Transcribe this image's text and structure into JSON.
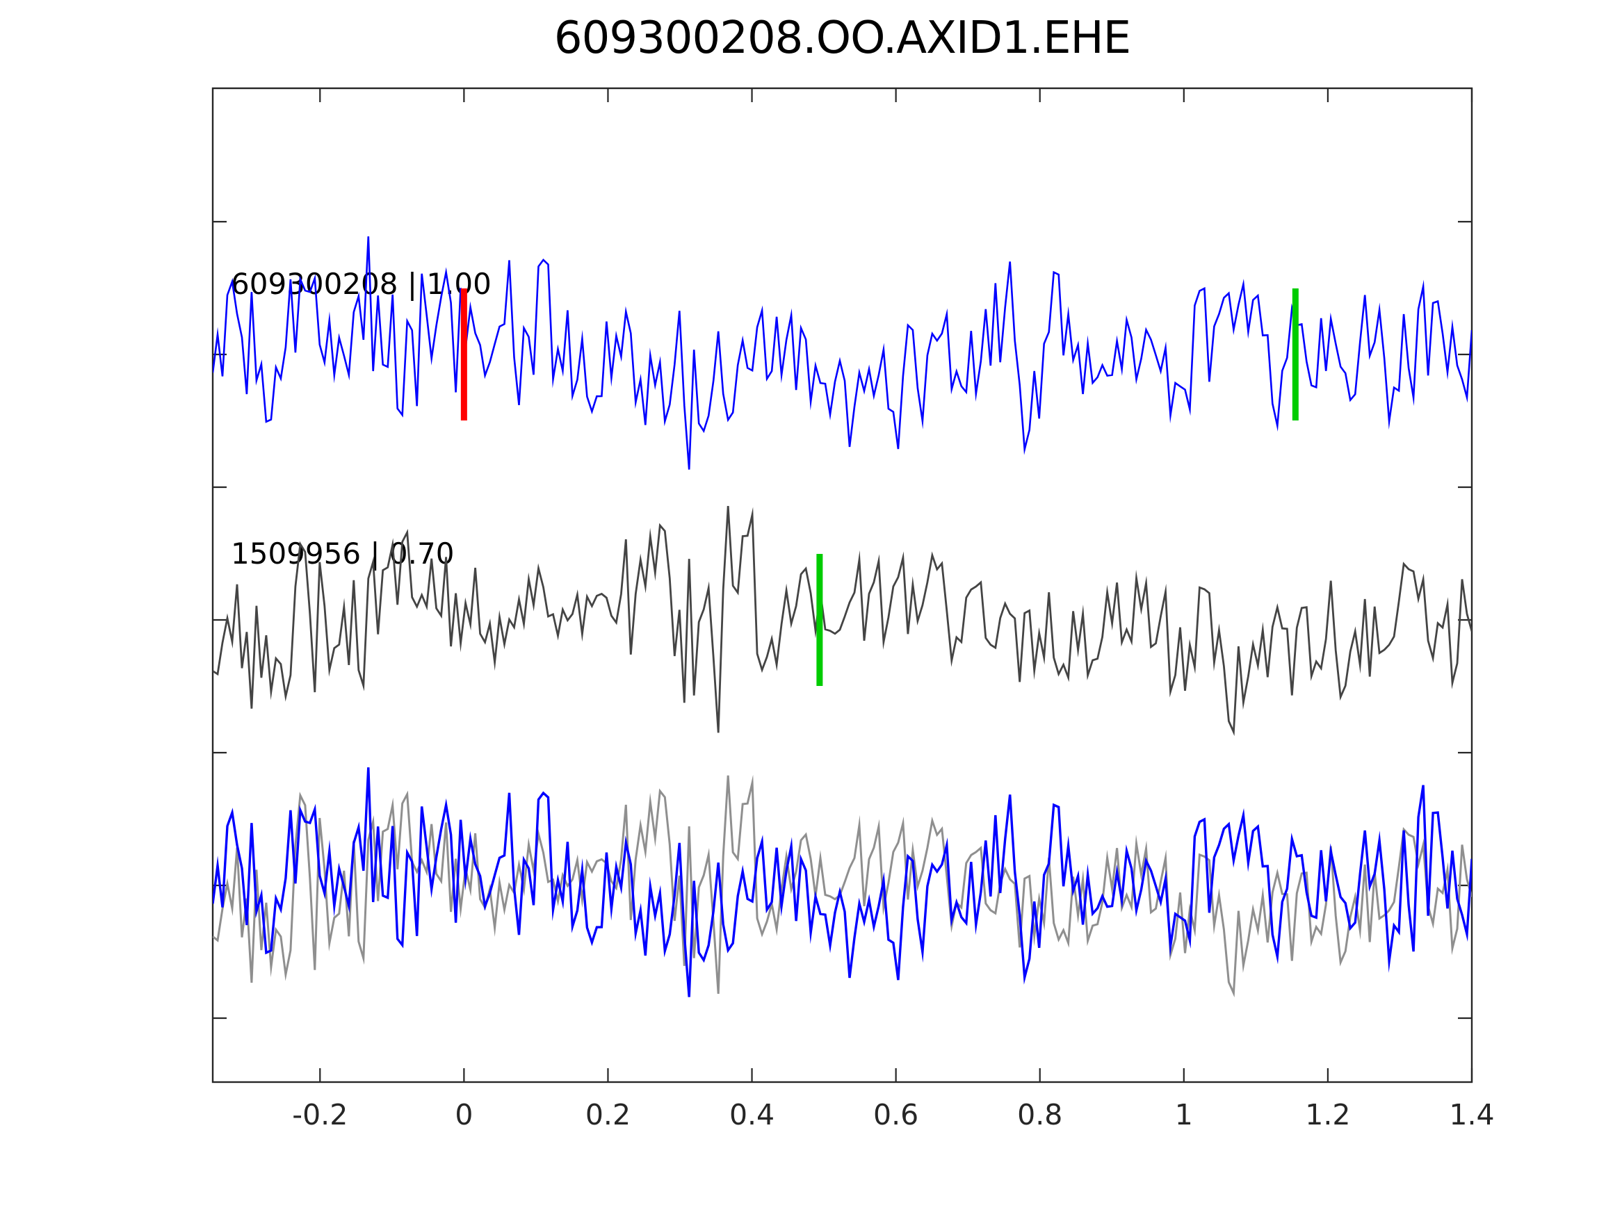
{
  "figure": {
    "background": "#ffffff",
    "axis_color": "#262626",
    "text_color": "#000000"
  },
  "chart_data": {
    "type": "line",
    "title": "609300208.OO.AXID1.EHE",
    "xlabel": "",
    "ylabel": "",
    "grid": false,
    "legend": "none",
    "x_axis": {
      "range": [
        -0.349,
        1.4
      ],
      "tick_values": [
        -0.2,
        0,
        0.2,
        0.4,
        0.6,
        0.8,
        1,
        1.2,
        1.4
      ],
      "tick_labels": [
        "-0.2",
        "0",
        "0.2",
        "0.4",
        "0.6",
        "0.8",
        "1",
        "1.2",
        "1.4"
      ]
    },
    "y_axis": {
      "tick_labels": [],
      "tick_count": 7
    },
    "traces": [
      {
        "name": "detection-trace",
        "label": "609300208 | 1.00",
        "id": "609300208",
        "correlation": "1.00",
        "color": "#0000ff",
        "row": 1,
        "picks": [
          {
            "t": 0.0,
            "color": "#ff0000",
            "name": "red-pick-marker"
          },
          {
            "t": 1.155,
            "color": "#00cc00",
            "name": "green-pick-marker"
          }
        ]
      },
      {
        "name": "template-trace",
        "label": "1509956 | 0.70",
        "id": "1509956",
        "correlation": "0.70",
        "color": "#444444",
        "row": 2,
        "picks": [
          {
            "t": 0.494,
            "color": "#00cc00",
            "name": "green-pick-marker"
          }
        ]
      },
      {
        "name": "overlay-template-trace",
        "label": "",
        "color": "#8f8f8f",
        "row": 3,
        "picks": []
      },
      {
        "name": "overlay-detection-trace",
        "label": "",
        "color": "#0000ff",
        "row": 3,
        "picks": []
      }
    ]
  }
}
